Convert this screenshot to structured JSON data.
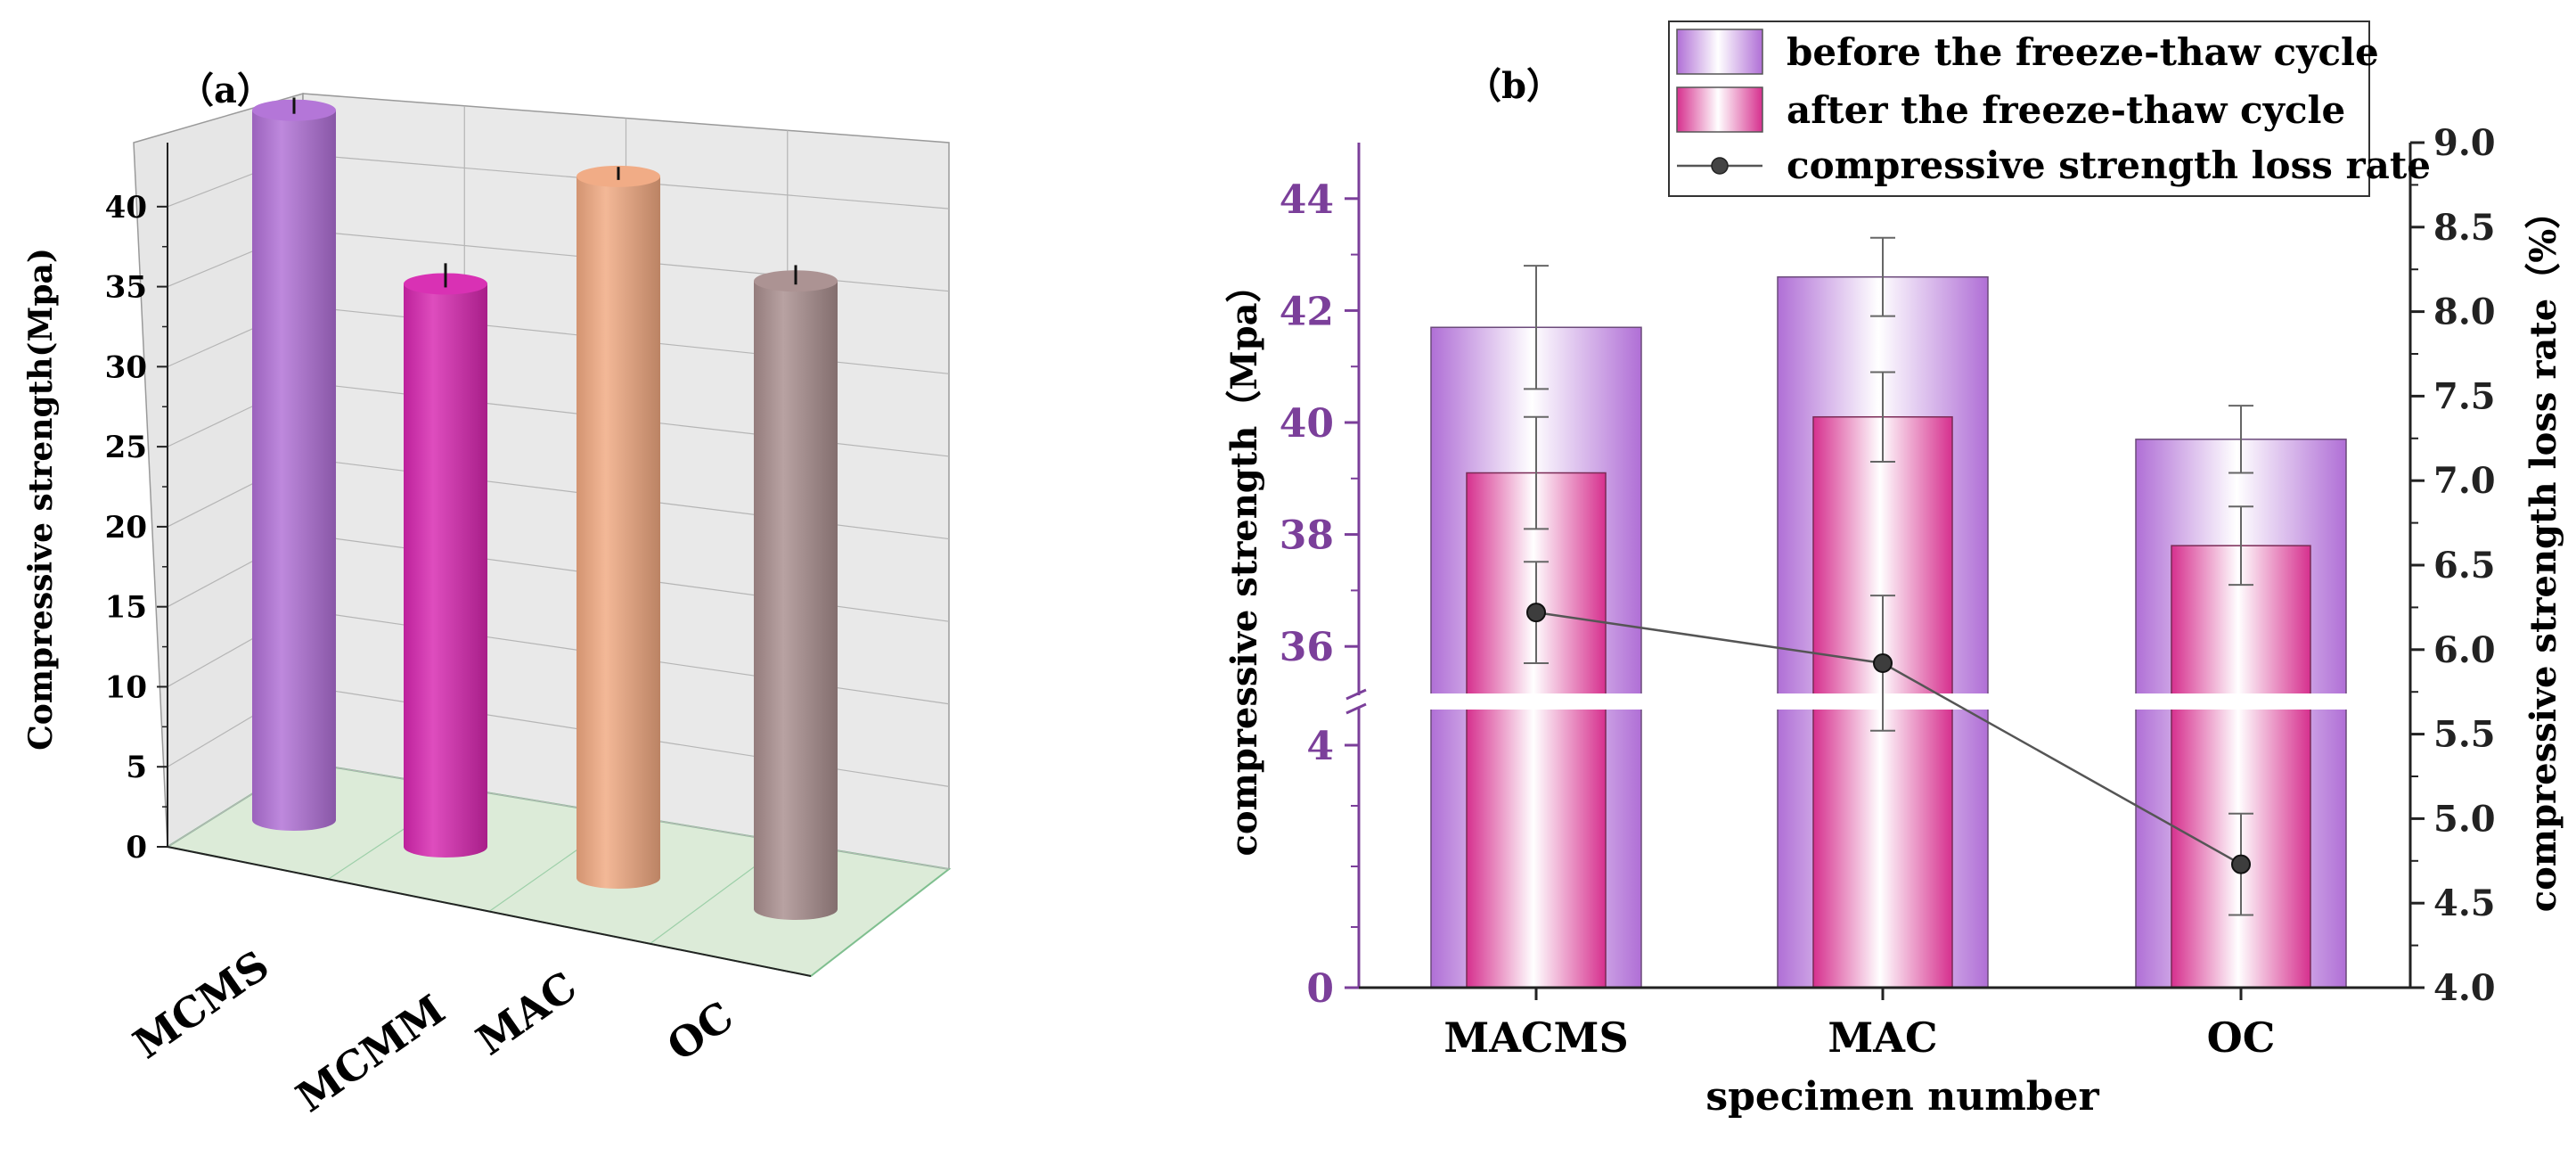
{
  "chart_data": [
    {
      "type": "bar",
      "panel_label": "（a）",
      "ylabel": "Compressive strength(Mpa)",
      "xlabel": "",
      "categories": [
        "MCMS",
        "MCMM",
        "MAC",
        "OC"
      ],
      "values": [
        43.5,
        34.5,
        43.0,
        38.5
      ],
      "errors": [
        0.8,
        1.3,
        0.6,
        1.0
      ],
      "bar_colors": [
        "#b06fd6",
        "#d726b0",
        "#f0a880",
        "#a88d8d"
      ],
      "ylim": [
        0,
        44
      ],
      "yticks": [
        0,
        5,
        10,
        15,
        20,
        25,
        30,
        35,
        40
      ],
      "grid": true
    },
    {
      "type": "bar",
      "panel_label": "（b）",
      "xlabel": "specimen number",
      "ylabel": "compressive strength（Mpa）",
      "y2label": "compressive strength loss rate（%）",
      "categories": [
        "MACMS",
        "MAC",
        "OC"
      ],
      "series": [
        {
          "name": "before the freeze-thaw cycle",
          "values": [
            41.7,
            42.6,
            39.7
          ],
          "errors": [
            1.1,
            0.7,
            0.6
          ]
        },
        {
          "name": "after the freeze-thaw cycle",
          "values": [
            39.1,
            40.1,
            37.8
          ],
          "errors": [
            1.0,
            0.8,
            0.7
          ]
        },
        {
          "name": "compressive strength loss rate",
          "axis": "right",
          "values": [
            6.22,
            5.92,
            4.73
          ],
          "errors": [
            0.3,
            0.4,
            0.3
          ]
        }
      ],
      "ylim_lower": [
        0,
        5
      ],
      "ylim_upper": [
        35,
        45
      ],
      "yticks_lower": [
        0,
        4
      ],
      "yticks_upper": [
        36,
        38,
        40,
        42,
        44
      ],
      "y2lim": [
        4.0,
        9.0
      ],
      "y2ticks": [
        "4.0",
        "4.5",
        "5.0",
        "5.5",
        "6.0",
        "6.5",
        "7.0",
        "7.5",
        "8.0",
        "8.5",
        "9.0"
      ],
      "legend_position": "top-right",
      "colors": {
        "axis_left": "#7b3f9a",
        "before": "#b06fd6",
        "after": "#d6308e",
        "line": "#555555"
      }
    }
  ]
}
